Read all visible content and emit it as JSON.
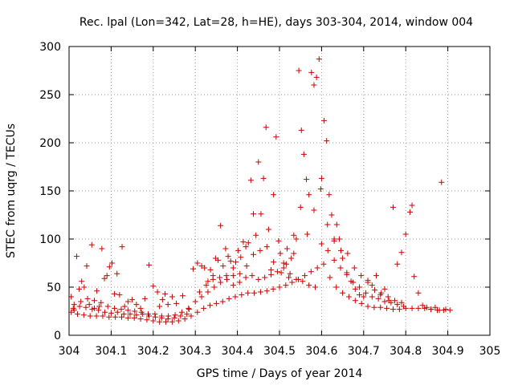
{
  "chart_data": {
    "type": "scatter",
    "title": "Rec. lpal (Lon=342, Lat=28, h=HE), days 303-304, 2014, window 004",
    "xlabel": "GPS time / Days of year 2014",
    "ylabel": "STEC from uqrg / TECUs",
    "xlim": [
      304,
      305
    ],
    "ylim": [
      0,
      300
    ],
    "x_ticks": [
      "304",
      "304.1",
      "304.2",
      "304.3",
      "304.4",
      "304.5",
      "304.6",
      "304.7",
      "304.8",
      "304.9",
      "305"
    ],
    "y_ticks": [
      "0",
      "50",
      "100",
      "150",
      "200",
      "250",
      "300"
    ],
    "grid": true,
    "marker": "plus",
    "marker_color": "#cc0000",
    "series": [
      {
        "points": [
          [
            304.005,
            40
          ],
          [
            304.012,
            26
          ],
          [
            304.018,
            82
          ],
          [
            304.024,
            48
          ],
          [
            304.03,
            56
          ],
          [
            304.036,
            50
          ],
          [
            304.042,
            72
          ],
          [
            304.048,
            32
          ],
          [
            304.054,
            94
          ],
          [
            304.06,
            28
          ],
          [
            304.066,
            46
          ],
          [
            304.072,
            30
          ],
          [
            304.078,
            90
          ],
          [
            304.084,
            59
          ],
          [
            304.09,
            62
          ],
          [
            304.096,
            71
          ],
          [
            304.102,
            75
          ],
          [
            304.108,
            43
          ],
          [
            304.114,
            64
          ],
          [
            304.12,
            42
          ],
          [
            304.126,
            92
          ],
          [
            304.132,
            30
          ],
          [
            304.14,
            35
          ],
          [
            304.15,
            37
          ],
          [
            304.16,
            32
          ],
          [
            304.17,
            28
          ],
          [
            304.18,
            38
          ],
          [
            304.19,
            73
          ],
          [
            304.2,
            51
          ],
          [
            304.21,
            45
          ],
          [
            304.215,
            30
          ],
          [
            304.222,
            37
          ],
          [
            304.228,
            43
          ],
          [
            304.235,
            32
          ],
          [
            304.245,
            40
          ],
          [
            304.255,
            33
          ],
          [
            304.27,
            41
          ],
          [
            304.285,
            27
          ],
          [
            304.295,
            69
          ],
          [
            304.305,
            75
          ],
          [
            304.315,
            72
          ],
          [
            304.322,
            70
          ],
          [
            304.33,
            56
          ],
          [
            304.336,
            68
          ],
          [
            304.342,
            62
          ],
          [
            304.348,
            80
          ],
          [
            304.354,
            78
          ],
          [
            304.36,
            114
          ],
          [
            304.366,
            72
          ],
          [
            304.372,
            90
          ],
          [
            304.378,
            82
          ],
          [
            304.384,
            77
          ],
          [
            304.39,
            70
          ],
          [
            304.396,
            76
          ],
          [
            304.402,
            88
          ],
          [
            304.408,
            81
          ],
          [
            304.414,
            97
          ],
          [
            304.42,
            92
          ],
          [
            304.426,
            96
          ],
          [
            304.432,
            161
          ],
          [
            304.438,
            126
          ],
          [
            304.444,
            104
          ],
          [
            304.45,
            180
          ],
          [
            304.456,
            126
          ],
          [
            304.462,
            163
          ],
          [
            304.468,
            216
          ],
          [
            304.474,
            110
          ],
          [
            304.48,
            68
          ],
          [
            304.486,
            146
          ],
          [
            304.492,
            206
          ],
          [
            304.498,
            98
          ],
          [
            304.504,
            65
          ],
          [
            304.51,
            70
          ],
          [
            304.516,
            74
          ],
          [
            304.522,
            60
          ],
          [
            304.528,
            80
          ],
          [
            304.534,
            85
          ],
          [
            304.54,
            100
          ],
          [
            304.546,
            275
          ],
          [
            304.552,
            213
          ],
          [
            304.558,
            188
          ],
          [
            304.564,
            162
          ],
          [
            304.57,
            146
          ],
          [
            304.576,
            273
          ],
          [
            304.582,
            260
          ],
          [
            304.588,
            268
          ],
          [
            304.594,
            287
          ],
          [
            304.6,
            163
          ],
          [
            304.606,
            223
          ],
          [
            304.612,
            202
          ],
          [
            304.618,
            146
          ],
          [
            304.624,
            125
          ],
          [
            304.63,
            100
          ],
          [
            304.636,
            115
          ],
          [
            304.642,
            100
          ],
          [
            304.65,
            80
          ],
          [
            304.66,
            63
          ],
          [
            304.67,
            56
          ],
          [
            304.68,
            48
          ],
          [
            304.69,
            42
          ],
          [
            304.7,
            40
          ],
          [
            304.71,
            57
          ],
          [
            304.72,
            52
          ],
          [
            304.73,
            62
          ],
          [
            304.74,
            42
          ],
          [
            304.75,
            48
          ],
          [
            304.76,
            36
          ],
          [
            304.77,
            133
          ],
          [
            304.78,
            74
          ],
          [
            304.79,
            86
          ],
          [
            304.8,
            105
          ],
          [
            304.81,
            128
          ],
          [
            304.815,
            135
          ],
          [
            304.82,
            61
          ],
          [
            304.83,
            44
          ],
          [
            304.84,
            31
          ],
          [
            304.85,
            29
          ],
          [
            304.86,
            27
          ],
          [
            304.87,
            29
          ],
          [
            304.88,
            26
          ],
          [
            304.885,
            159
          ],
          [
            304.895,
            27
          ],
          [
            304.905,
            26
          ],
          [
            304.005,
            24
          ],
          [
            304.02,
            22
          ],
          [
            304.035,
            21
          ],
          [
            304.05,
            20
          ],
          [
            304.065,
            20
          ],
          [
            304.08,
            20
          ],
          [
            304.095,
            19
          ],
          [
            304.11,
            19
          ],
          [
            304.125,
            19
          ],
          [
            304.14,
            18
          ],
          [
            304.155,
            18
          ],
          [
            304.17,
            17
          ],
          [
            304.185,
            16
          ],
          [
            304.2,
            15
          ],
          [
            304.215,
            14
          ],
          [
            304.23,
            14
          ],
          [
            304.245,
            14
          ],
          [
            304.26,
            15
          ],
          [
            304.275,
            17
          ],
          [
            304.29,
            20
          ],
          [
            304.305,
            24
          ],
          [
            304.32,
            28
          ],
          [
            304.335,
            31
          ],
          [
            304.35,
            33
          ],
          [
            304.365,
            35
          ],
          [
            304.38,
            38
          ],
          [
            304.395,
            40
          ],
          [
            304.41,
            42
          ],
          [
            304.425,
            44
          ],
          [
            304.44,
            44
          ],
          [
            304.455,
            45
          ],
          [
            304.47,
            46
          ],
          [
            304.485,
            48
          ],
          [
            304.5,
            50
          ],
          [
            304.515,
            52
          ],
          [
            304.53,
            55
          ],
          [
            304.545,
            58
          ],
          [
            304.56,
            62
          ],
          [
            304.575,
            66
          ],
          [
            304.59,
            70
          ],
          [
            304.605,
            74
          ],
          [
            304.62,
            60
          ],
          [
            304.635,
            50
          ],
          [
            304.65,
            44
          ],
          [
            304.665,
            40
          ],
          [
            304.68,
            36
          ],
          [
            304.695,
            33
          ],
          [
            304.71,
            30
          ],
          [
            304.725,
            29
          ],
          [
            304.74,
            29
          ],
          [
            304.755,
            28
          ],
          [
            304.77,
            27
          ],
          [
            304.785,
            27
          ],
          [
            304.8,
            28
          ],
          [
            304.815,
            28
          ],
          [
            304.83,
            28
          ],
          [
            304.845,
            28
          ],
          [
            304.86,
            27
          ],
          [
            304.875,
            26
          ],
          [
            304.89,
            26
          ],
          [
            304.01,
            28
          ],
          [
            304.025,
            30
          ],
          [
            304.04,
            29
          ],
          [
            304.055,
            27
          ],
          [
            304.07,
            26
          ],
          [
            304.085,
            24
          ],
          [
            304.1,
            23
          ],
          [
            304.115,
            24
          ],
          [
            304.13,
            22
          ],
          [
            304.145,
            22
          ],
          [
            304.16,
            21
          ],
          [
            304.175,
            22
          ],
          [
            304.19,
            20
          ],
          [
            304.205,
            19
          ],
          [
            304.22,
            18
          ],
          [
            304.235,
            17
          ],
          [
            304.25,
            18
          ],
          [
            304.265,
            20
          ],
          [
            304.28,
            22
          ],
          [
            304.3,
            35
          ],
          [
            304.315,
            40
          ],
          [
            304.33,
            45
          ],
          [
            304.345,
            50
          ],
          [
            304.36,
            55
          ],
          [
            304.375,
            58
          ],
          [
            304.39,
            52
          ],
          [
            304.405,
            55
          ],
          [
            304.42,
            60
          ],
          [
            304.435,
            62
          ],
          [
            304.45,
            58
          ],
          [
            304.465,
            60
          ],
          [
            304.48,
            63
          ],
          [
            304.495,
            66
          ],
          [
            304.51,
            75
          ],
          [
            304.525,
            64
          ],
          [
            304.54,
            58
          ],
          [
            304.555,
            56
          ],
          [
            304.57,
            52
          ],
          [
            304.585,
            50
          ],
          [
            304.6,
            95
          ],
          [
            304.615,
            88
          ],
          [
            304.63,
            78
          ],
          [
            304.645,
            70
          ],
          [
            304.66,
            65
          ],
          [
            304.675,
            55
          ],
          [
            304.69,
            50
          ],
          [
            304.705,
            44
          ],
          [
            304.72,
            40
          ],
          [
            304.735,
            38
          ],
          [
            304.75,
            35
          ],
          [
            304.765,
            34
          ],
          [
            304.78,
            32
          ],
          [
            304.795,
            30
          ],
          [
            304.012,
            32
          ],
          [
            304.028,
            35
          ],
          [
            304.044,
            38
          ],
          [
            304.06,
            36
          ],
          [
            304.076,
            34
          ],
          [
            304.092,
            30
          ],
          [
            304.108,
            28
          ],
          [
            304.124,
            27
          ],
          [
            304.14,
            26
          ],
          [
            304.156,
            25
          ],
          [
            304.172,
            24
          ],
          [
            304.188,
            22
          ],
          [
            304.204,
            22
          ],
          [
            304.22,
            20
          ],
          [
            304.236,
            20
          ],
          [
            304.252,
            21
          ],
          [
            304.268,
            24
          ],
          [
            304.284,
            28
          ],
          [
            304.31,
            45
          ],
          [
            304.326,
            52
          ],
          [
            304.342,
            58
          ],
          [
            304.358,
            60
          ],
          [
            304.374,
            62
          ],
          [
            304.39,
            62
          ],
          [
            304.406,
            64
          ],
          [
            304.422,
            72
          ],
          [
            304.438,
            84
          ],
          [
            304.454,
            88
          ],
          [
            304.47,
            92
          ],
          [
            304.486,
            76
          ],
          [
            304.502,
            85
          ],
          [
            304.518,
            90
          ],
          [
            304.534,
            104
          ],
          [
            304.55,
            133
          ],
          [
            304.566,
            105
          ],
          [
            304.582,
            130
          ],
          [
            304.598,
            152
          ],
          [
            304.614,
            115
          ],
          [
            304.63,
            98
          ],
          [
            304.646,
            88
          ],
          [
            304.662,
            85
          ],
          [
            304.678,
            70
          ],
          [
            304.694,
            62
          ],
          [
            304.71,
            55
          ],
          [
            304.726,
            47
          ],
          [
            304.742,
            44
          ],
          [
            304.758,
            40
          ],
          [
            304.774,
            36
          ],
          [
            304.79,
            34
          ]
        ]
      }
    ]
  }
}
